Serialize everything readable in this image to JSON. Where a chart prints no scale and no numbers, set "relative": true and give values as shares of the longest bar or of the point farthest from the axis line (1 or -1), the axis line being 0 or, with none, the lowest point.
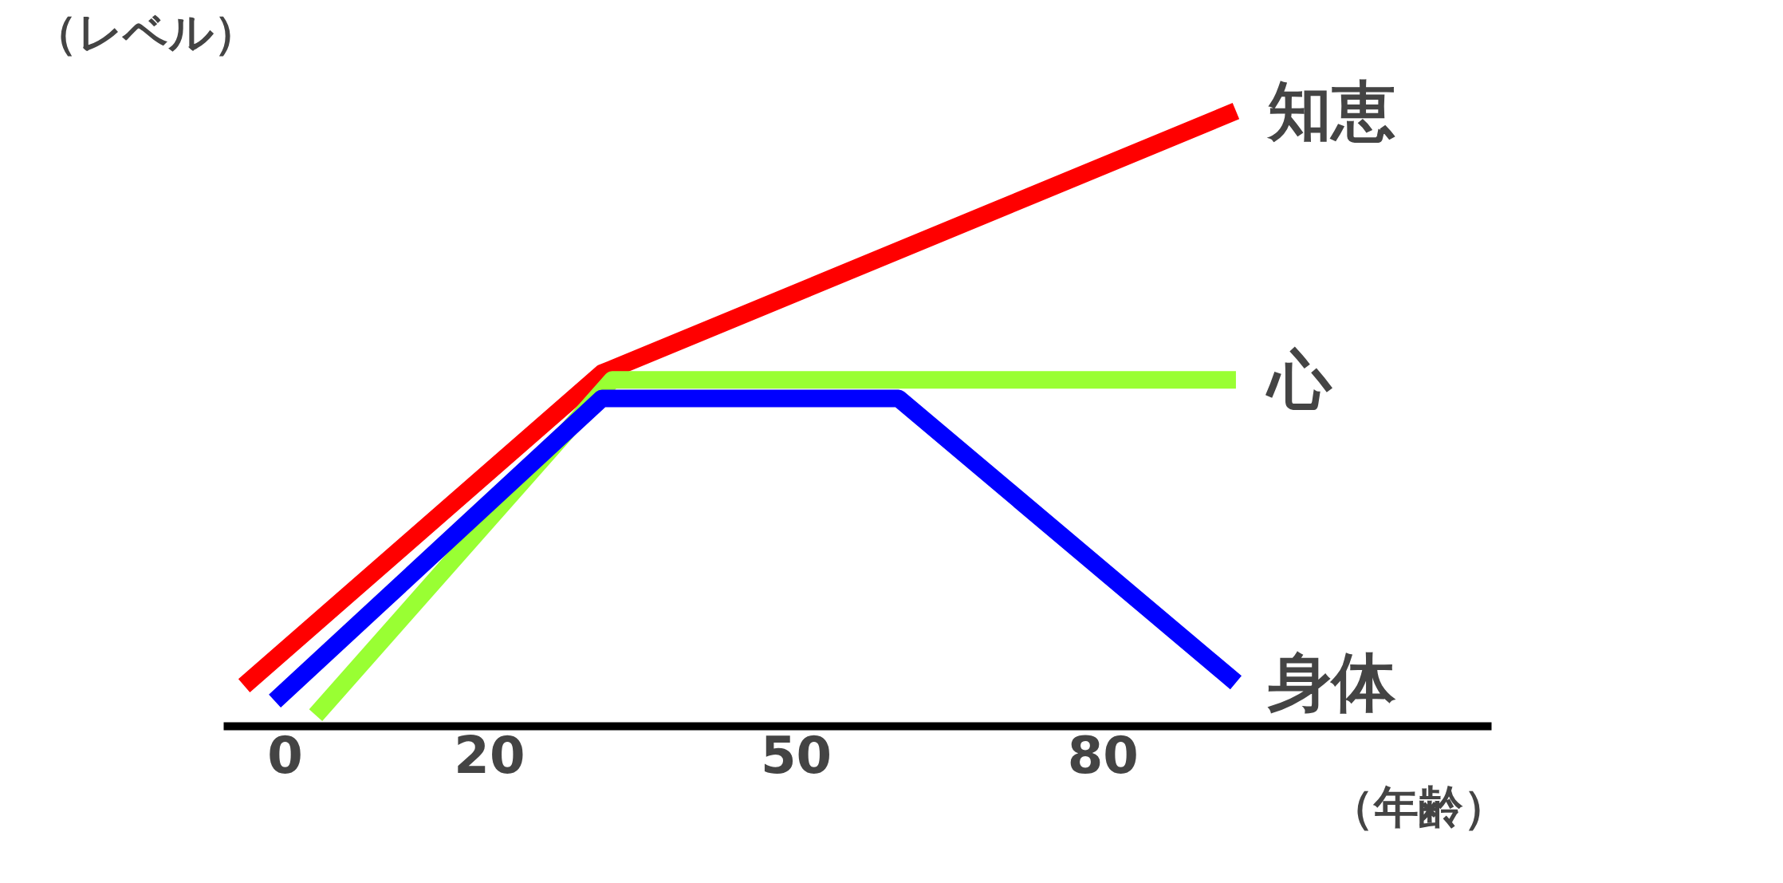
{
  "chart_data": {
    "type": "line",
    "relative": true,
    "ylabel": "（レベル）",
    "xlabel": "（年齢）",
    "xlim": [
      -6,
      118
    ],
    "xticks": [
      0,
      20,
      50,
      80
    ],
    "grid": false,
    "legend": false,
    "marker": "none",
    "line_style": "solid",
    "series": [
      {
        "name": "知恵",
        "color": "#ff0000",
        "x": [
          -4,
          31,
          93
        ],
        "values": [
          0.066,
          0.574,
          1
        ]
      },
      {
        "name": "心",
        "color": "#99ff33",
        "x": [
          3,
          32,
          93
        ],
        "values": [
          0.018,
          0.563,
          0.563
        ]
      },
      {
        "name": "身体",
        "color": "#0000ff",
        "x": [
          -1,
          31,
          60,
          93
        ],
        "values": [
          0.041,
          0.533,
          0.533,
          0.071
        ]
      }
    ]
  }
}
